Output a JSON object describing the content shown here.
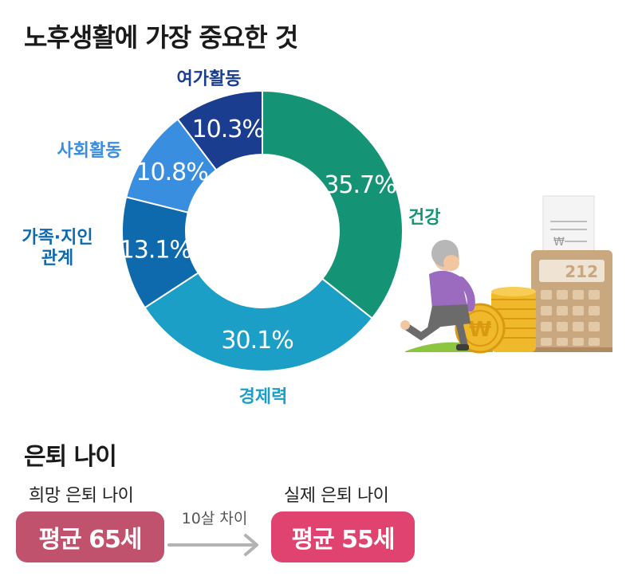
{
  "title": "노후생활에 가장 중요한 것",
  "chart_data": {
    "type": "pie",
    "subtype": "donut",
    "slices": [
      {
        "label": "건강",
        "value": 35.7,
        "display": "35.7%",
        "color": "#159475"
      },
      {
        "label": "경제력",
        "value": 30.1,
        "display": "30.1%",
        "color": "#1c9fc6"
      },
      {
        "label": "가족·지인\n관계",
        "value": 13.1,
        "display": "13.1%",
        "color": "#0e6aad"
      },
      {
        "label": "사회활동",
        "value": 10.8,
        "display": "10.8%",
        "color": "#3a8ee0"
      },
      {
        "label": "여가활동",
        "value": 10.3,
        "display": "10.3%",
        "color": "#1a3d8f"
      }
    ]
  },
  "retirement": {
    "section_title": "은퇴 나이",
    "desired": {
      "label": "희망 은퇴 나이",
      "value_text": "평균 65세",
      "value": 65,
      "color": "#c0526e"
    },
    "gap_text": "10살 차이",
    "actual": {
      "label": "실제 은퇴 나이",
      "value_text": "평균 55세",
      "value": 55,
      "color": "#e0436f"
    }
  },
  "illustration": {
    "calculator_display": "212",
    "receipt_symbol": "₩",
    "coin_symbol": "₩"
  }
}
